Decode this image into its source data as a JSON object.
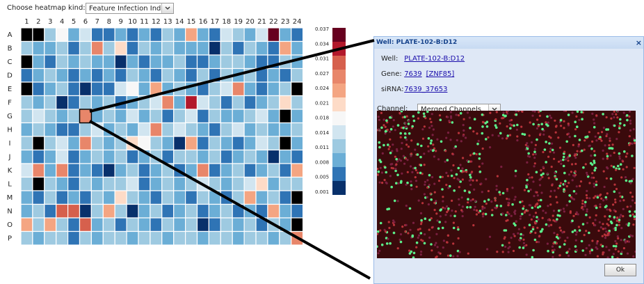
{
  "controls": {
    "heatmap_label": "Choose heatmap kind:",
    "heatmap_kind": "Feature Infection Index"
  },
  "heatmap": {
    "columns": [
      1,
      2,
      3,
      4,
      5,
      6,
      7,
      8,
      9,
      10,
      11,
      12,
      13,
      14,
      15,
      16,
      17,
      18,
      19,
      20,
      21,
      22,
      23,
      24
    ],
    "rows": [
      "A",
      "B",
      "C",
      "D",
      "E",
      "F",
      "G",
      "H",
      "I",
      "J",
      "K",
      "L",
      "M",
      "N",
      "O",
      "P"
    ],
    "values": [
      [
        null,
        null,
        0.011,
        0.018,
        0.008,
        0.014,
        0.005,
        0.005,
        0.008,
        0.005,
        0.008,
        0.005,
        0.011,
        0.008,
        0.024,
        0.008,
        0.005,
        0.014,
        0.011,
        0.008,
        0.014,
        0.037,
        0.008,
        0.005
      ],
      [
        0.011,
        0.008,
        0.008,
        0.011,
        0.005,
        0.011,
        0.027,
        0.011,
        0.021,
        0.005,
        0.011,
        0.008,
        0.011,
        0.008,
        0.008,
        0.008,
        0.001,
        0.011,
        0.005,
        0.011,
        0.008,
        0.005,
        0.024,
        0.008
      ],
      [
        null,
        0.008,
        0.005,
        0.011,
        0.008,
        0.011,
        0.008,
        0.008,
        0.001,
        0.008,
        0.005,
        0.008,
        0.008,
        0.011,
        0.005,
        0.005,
        0.008,
        0.011,
        0.011,
        0.008,
        0.005,
        0.005,
        0.011,
        0.008
      ],
      [
        0.005,
        0.008,
        0.011,
        0.008,
        0.005,
        0.008,
        0.005,
        0.008,
        0.005,
        0.011,
        0.008,
        0.005,
        0.011,
        0.008,
        0.005,
        0.011,
        0.005,
        0.011,
        0.008,
        0.011,
        0.005,
        0.008,
        0.005,
        0.011
      ],
      [
        null,
        0.005,
        0.008,
        0.011,
        0.005,
        0.001,
        0.005,
        0.005,
        0.014,
        0.018,
        0.008,
        0.024,
        0.008,
        0.011,
        0.008,
        0.005,
        0.011,
        0.014,
        0.027,
        0.008,
        0.005,
        0.008,
        0.011,
        null
      ],
      [
        0.011,
        0.008,
        0.011,
        0.001,
        0.005,
        0.011,
        0.008,
        0.011,
        0.005,
        0.008,
        0.011,
        0.014,
        0.027,
        0.008,
        0.034,
        0.014,
        0.011,
        0.005,
        0.011,
        0.005,
        0.008,
        0.011,
        0.021,
        0.011
      ],
      [
        0.011,
        0.014,
        0.011,
        0.008,
        0.011,
        0.027,
        0.008,
        0.011,
        0.008,
        0.014,
        0.008,
        0.011,
        0.005,
        0.011,
        0.014,
        0.005,
        0.011,
        0.008,
        0.008,
        0.011,
        0.014,
        0.008,
        null,
        0.008
      ],
      [
        0.008,
        0.011,
        0.008,
        0.005,
        0.005,
        0.011,
        0.014,
        0.008,
        0.011,
        0.008,
        0.014,
        0.027,
        0.011,
        0.014,
        0.011,
        0.008,
        0.005,
        0.011,
        0.014,
        0.008,
        0.011,
        0.008,
        0.008,
        0.011
      ],
      [
        0.011,
        null,
        0.011,
        0.014,
        0.008,
        0.027,
        0.011,
        0.008,
        0.011,
        0.021,
        0.018,
        0.011,
        0.008,
        0.001,
        0.024,
        0.005,
        0.011,
        0.008,
        0.005,
        0.008,
        0.014,
        0.011,
        null,
        0.008
      ],
      [
        0.008,
        0.005,
        0.008,
        0.014,
        0.005,
        0.008,
        0.011,
        0.008,
        0.011,
        0.005,
        0.008,
        0.011,
        0.005,
        0.011,
        0.011,
        0.008,
        0.011,
        0.005,
        0.008,
        0.011,
        0.008,
        0.001,
        0.008,
        0.005
      ],
      [
        0.014,
        0.027,
        0.008,
        0.027,
        0.005,
        0.008,
        0.005,
        0.001,
        0.008,
        0.011,
        0.005,
        0.008,
        0.011,
        0.005,
        0.008,
        0.027,
        0.005,
        0.008,
        0.011,
        0.005,
        0.008,
        0.011,
        0.005,
        0.024
      ],
      [
        0.011,
        null,
        0.011,
        0.008,
        0.005,
        0.011,
        0.008,
        0.011,
        0.011,
        0.014,
        0.005,
        0.008,
        0.011,
        0.008,
        0.011,
        0.014,
        0.011,
        0.008,
        0.011,
        0.014,
        0.021,
        0.008,
        0.011,
        0.011
      ],
      [
        0.008,
        0.005,
        0.011,
        0.005,
        0.008,
        0.005,
        0.011,
        0.008,
        0.021,
        0.011,
        0.008,
        0.005,
        0.011,
        0.008,
        0.005,
        0.011,
        0.008,
        0.005,
        0.011,
        0.024,
        0.008,
        0.011,
        0.005,
        null
      ],
      [
        0.008,
        0.011,
        0.005,
        0.031,
        0.031,
        0.001,
        0.011,
        0.024,
        0.011,
        0.001,
        0.008,
        0.011,
        0.005,
        0.008,
        0.011,
        0.005,
        0.008,
        0.011,
        0.005,
        0.008,
        0.005,
        0.024,
        0.008,
        0.005
      ],
      [
        0.024,
        0.011,
        0.024,
        0.011,
        0.005,
        0.031,
        0.008,
        0.011,
        0.005,
        0.011,
        0.008,
        0.005,
        0.011,
        0.008,
        0.011,
        0.001,
        0.005,
        0.011,
        0.008,
        0.011,
        0.005,
        0.011,
        0.008,
        null
      ],
      [
        0.011,
        0.008,
        0.011,
        0.011,
        0.005,
        0.011,
        0.008,
        0.011,
        0.011,
        0.008,
        0.011,
        0.011,
        0.008,
        0.011,
        0.011,
        0.008,
        0.011,
        0.011,
        0.008,
        0.011,
        0.011,
        0.008,
        0.011,
        0.027
      ]
    ],
    "scale_ticks": [
      0.037,
      0.034,
      0.031,
      0.027,
      0.024,
      0.021,
      0.018,
      0.014,
      0.011,
      0.008,
      0.005,
      0.001
    ],
    "scale_colors": [
      "#67001f",
      "#b2182b",
      "#d6604d",
      "#e8866a",
      "#f4a582",
      "#fddbc7",
      "#f7f7f7",
      "#d1e5f0",
      "#9ecae1",
      "#6baed6",
      "#2f74b5",
      "#08306b"
    ],
    "missing_color": "#000000"
  },
  "dialog": {
    "title": "Well: PLATE-102-B:D12",
    "close": "×",
    "well_label": "Well:",
    "well": "PLATE-102-B:D12",
    "gene_label": "Gene:",
    "gene_id": "7639",
    "gene_symbol": "[ZNF85]",
    "sirna_label": "siRNA:",
    "sirna": "7639_37653",
    "channel_label": "Channel:",
    "channel": "Merged Channels",
    "ok": "Ok"
  }
}
